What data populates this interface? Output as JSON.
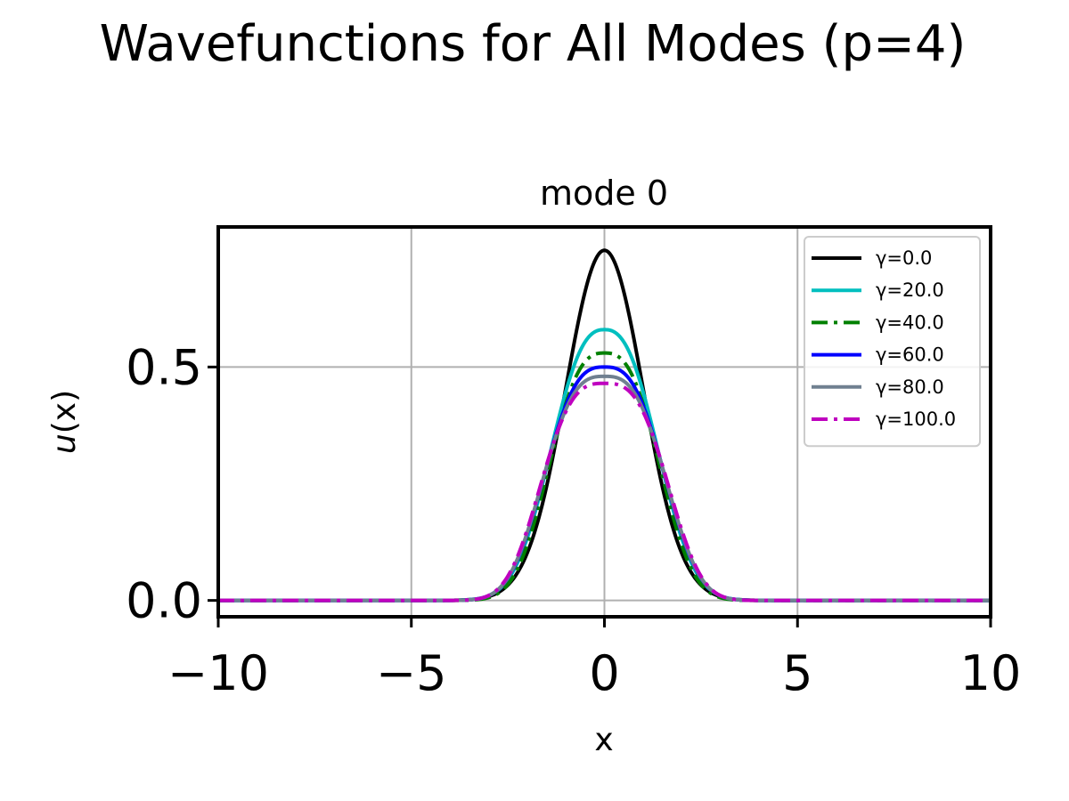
{
  "figure": {
    "suptitle": "Wavefunctions for All Modes (p=4)"
  },
  "chart_data": {
    "type": "line",
    "title": "mode 0",
    "xlabel": "x",
    "ylabel_italic": "u",
    "ylabel_rest": "(x)",
    "xlim": [
      -10,
      10
    ],
    "ylim": [
      -0.035,
      0.8
    ],
    "xticks": [
      -10,
      -5,
      0,
      5,
      10
    ],
    "xtick_labels": [
      "−10",
      "−5",
      "0",
      "5",
      "10"
    ],
    "yticks": [
      0.0,
      0.5
    ],
    "ytick_labels": [
      "0.0",
      "0.5"
    ],
    "grid": true,
    "legend_position": "top-right",
    "series": [
      {
        "name": "γ=0.0",
        "color": "#000000",
        "dash": "solid",
        "peak": 0.75,
        "shape": {
          "a": 0.5,
          "n": 2.0
        }
      },
      {
        "name": "γ=20.0",
        "color": "#00bfbf",
        "dash": "solid",
        "peak": 0.58,
        "shape": {
          "a": 0.26,
          "n": 2.5
        }
      },
      {
        "name": "γ=40.0",
        "color": "#008000",
        "dash": "dashdot",
        "peak": 0.53,
        "shape": {
          "a": 0.23,
          "n": 2.7
        }
      },
      {
        "name": "γ=60.0",
        "color": "#0000ff",
        "dash": "solid",
        "peak": 0.5,
        "shape": {
          "a": 0.18,
          "n": 2.8
        }
      },
      {
        "name": "γ=80.0",
        "color": "#708090",
        "dash": "solid",
        "peak": 0.48,
        "shape": {
          "a": 0.16,
          "n": 2.9
        }
      },
      {
        "name": "γ=100.0",
        "color": "#bf00bf",
        "dash": "dashdot",
        "peak": 0.465,
        "shape": {
          "a": 0.14,
          "n": 3.0
        }
      }
    ]
  }
}
